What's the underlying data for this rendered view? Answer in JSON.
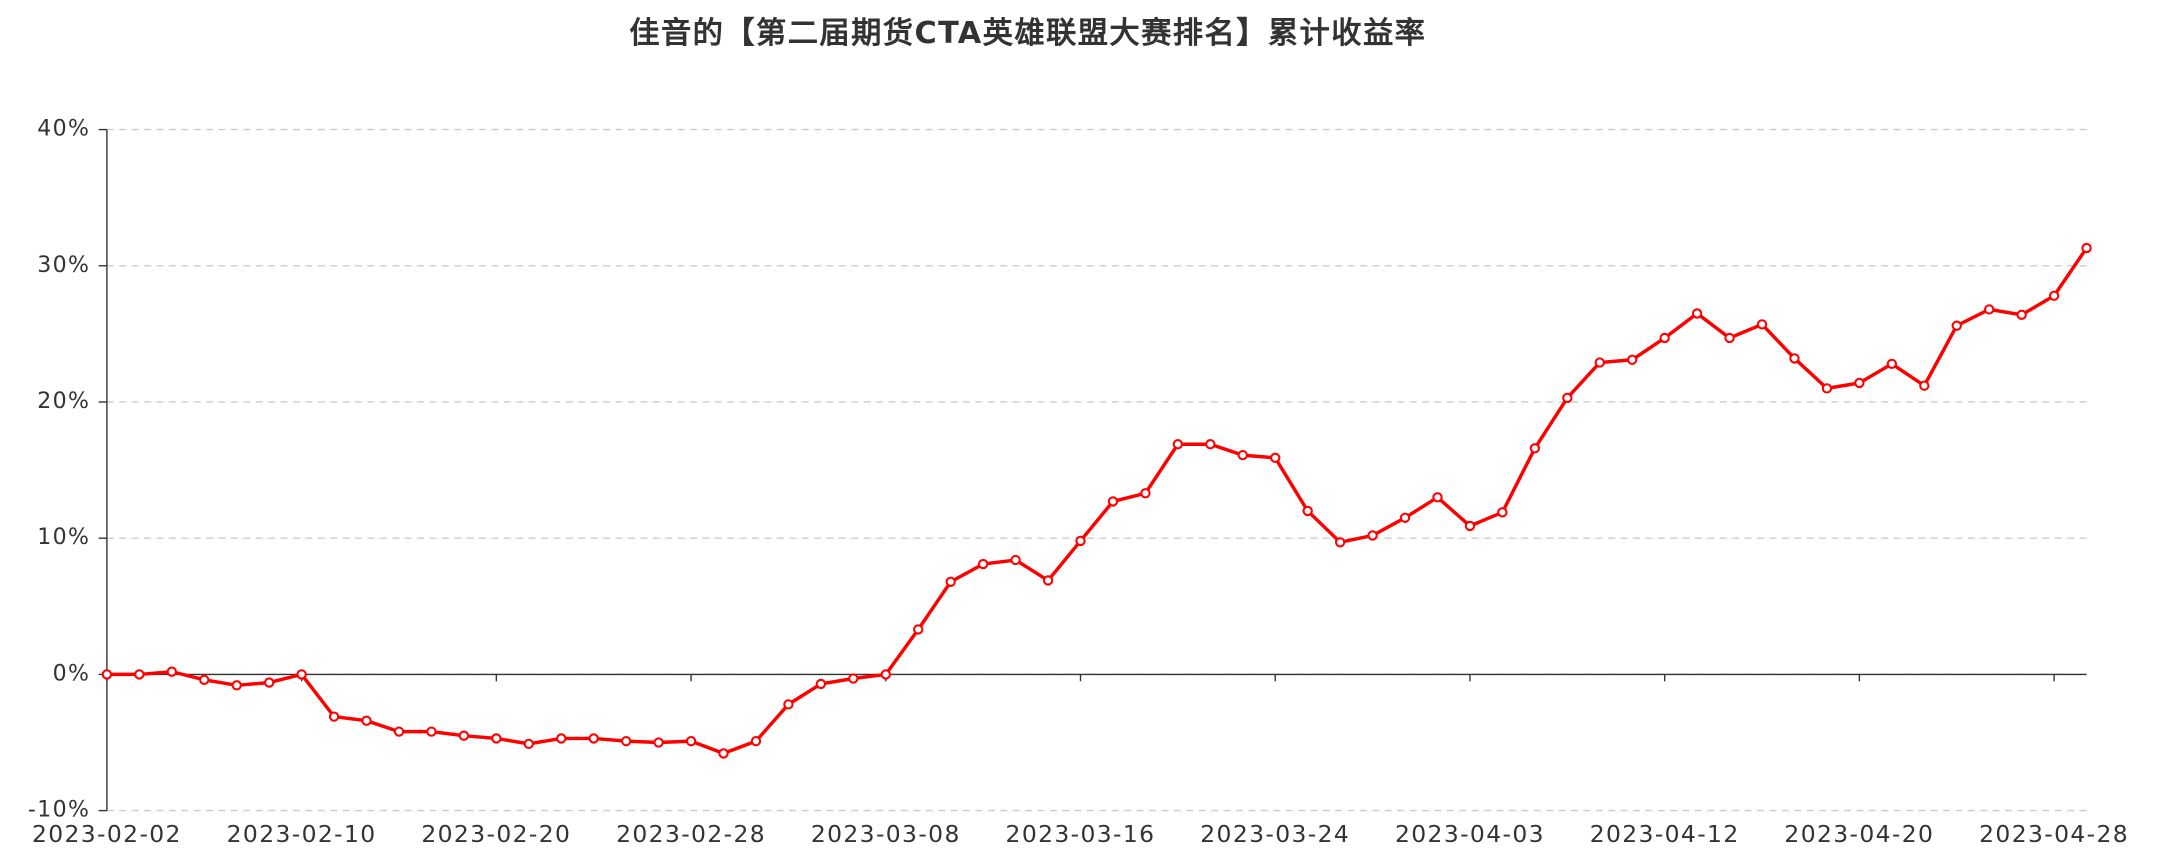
{
  "chart_data": {
    "type": "line",
    "title": "佳音的【第二届期货CTA英雄联盟大赛排名】累计收益率",
    "categories": [
      "2023-02-02",
      null,
      null,
      null,
      null,
      null,
      "2023-02-10",
      null,
      null,
      null,
      null,
      null,
      "2023-02-20",
      null,
      null,
      null,
      null,
      null,
      "2023-02-28",
      null,
      null,
      null,
      null,
      null,
      "2023-03-08",
      null,
      null,
      null,
      null,
      null,
      "2023-03-16",
      null,
      null,
      null,
      null,
      null,
      "2023-03-24",
      null,
      null,
      null,
      null,
      null,
      "2023-04-03",
      null,
      null,
      null,
      null,
      null,
      "2023-04-12",
      null,
      null,
      null,
      null,
      null,
      "2023-04-20",
      null,
      null,
      null,
      null,
      null,
      "2023-04-28",
      null
    ],
    "series": [
      {
        "color": "#ff0000",
        "values": [
          0,
          0,
          0.2,
          -0.4,
          -0.8,
          -0.6,
          0,
          -3.1,
          -3.4,
          -4.2,
          -4.2,
          -4.5,
          -4.7,
          -5.1,
          -4.7,
          -4.7,
          -4.9,
          -5.0,
          -4.9,
          -5.8,
          -4.9,
          -2.2,
          -0.7,
          -0.3,
          0,
          3.3,
          6.8,
          8.1,
          8.4,
          6.9,
          9.8,
          12.7,
          13.3,
          16.9,
          16.9,
          16.1,
          15.9,
          12.0,
          9.7,
          10.2,
          11.5,
          13.0,
          10.9,
          11.9,
          16.6,
          20.3,
          22.9,
          23.1,
          24.7,
          26.5,
          24.7,
          25.7,
          23.2,
          21.0,
          21.4,
          22.8,
          21.2,
          25.6,
          26.8,
          26.4,
          27.8,
          31.3
        ]
      }
    ],
    "ylim": [
      -10,
      40
    ],
    "yticks": [
      {
        "value": -10,
        "label": "-10%"
      },
      {
        "value": 0,
        "label": "0%"
      },
      {
        "value": 10,
        "label": "10%"
      },
      {
        "value": 20,
        "label": "20%"
      },
      {
        "value": 30,
        "label": "30%"
      },
      {
        "value": 40,
        "label": "40%"
      }
    ],
    "grid": true
  }
}
